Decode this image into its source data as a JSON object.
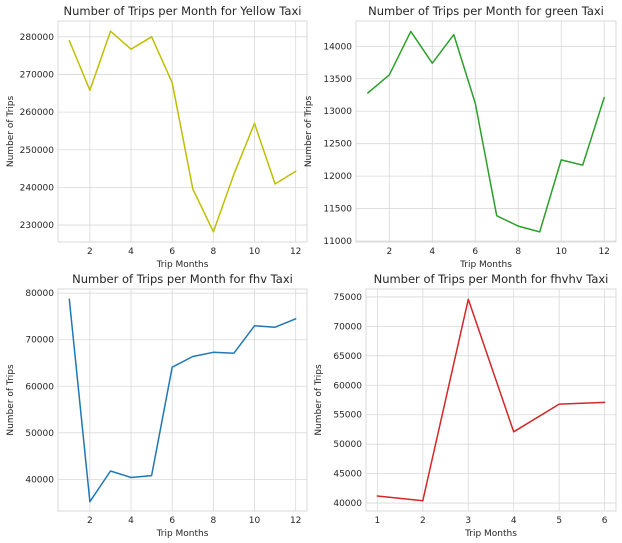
{
  "chart_data": [
    {
      "type": "line",
      "title": "Number of Trips per Month for Yellow Taxi",
      "xlabel": "Trip Months",
      "ylabel": "Number of Trips",
      "x": [
        1,
        2,
        3,
        4,
        5,
        6,
        7,
        8,
        9,
        10,
        11,
        12
      ],
      "series": [
        {
          "values": [
            279000,
            265800,
            281500,
            276700,
            280000,
            267800,
            239600,
            228200,
            243500,
            257000,
            240900,
            244300
          ]
        }
      ],
      "xticks": [
        2,
        4,
        6,
        8,
        10,
        12
      ],
      "yticks": [
        230000,
        240000,
        250000,
        260000,
        270000,
        280000
      ],
      "xlim": [
        0.45,
        12.55
      ],
      "ylim": [
        225500,
        284200
      ],
      "color": "#bfbf00",
      "grid": true
    },
    {
      "type": "line",
      "title": "Number of Trips per Month for green Taxi",
      "xlabel": "Trip Months",
      "ylabel": "Number of Trips",
      "x": [
        1,
        2,
        3,
        4,
        5,
        6,
        7,
        8,
        9,
        10,
        11,
        12
      ],
      "series": [
        {
          "values": [
            13280,
            13560,
            14230,
            13740,
            14180,
            13120,
            11390,
            11230,
            11140,
            12250,
            12170,
            13210
          ]
        }
      ],
      "xticks": [
        2,
        4,
        6,
        8,
        10,
        12
      ],
      "yticks": [
        11000,
        11500,
        12000,
        12500,
        13000,
        13500,
        14000
      ],
      "xlim": [
        0.45,
        12.55
      ],
      "ylim": [
        10985,
        14390
      ],
      "color": "#2ca02c",
      "grid": true
    },
    {
      "type": "line",
      "title": "Number of Trips per Month for fhv Taxi",
      "xlabel": "Trip Months",
      "ylabel": "Number of Trips",
      "x": [
        1,
        2,
        3,
        4,
        5,
        6,
        7,
        8,
        9,
        10,
        11,
        12
      ],
      "series": [
        {
          "values": [
            78700,
            35200,
            41800,
            40400,
            40800,
            64100,
            66400,
            67300,
            67100,
            73000,
            72700,
            74500
          ]
        }
      ],
      "xticks": [
        2,
        4,
        6,
        8,
        10,
        12
      ],
      "yticks": [
        40000,
        50000,
        60000,
        70000,
        80000
      ],
      "xlim": [
        0.45,
        12.55
      ],
      "ylim": [
        33200,
        80900
      ],
      "color": "#1f77b4",
      "grid": true
    },
    {
      "type": "line",
      "title": "Number of Trips per Month for fhvhv Taxi",
      "xlabel": "Trip Months",
      "ylabel": "Number of Trips",
      "x": [
        1,
        2,
        3,
        4,
        5,
        6
      ],
      "series": [
        {
          "values": [
            41200,
            40400,
            74600,
            52100,
            56800,
            57100
          ]
        }
      ],
      "xticks": [
        1,
        2,
        3,
        4,
        5,
        6
      ],
      "yticks": [
        40000,
        45000,
        50000,
        55000,
        60000,
        65000,
        70000,
        75000
      ],
      "xlim": [
        0.75,
        6.25
      ],
      "ylim": [
        38650,
        76350
      ],
      "color": "#d62728",
      "grid": true
    }
  ]
}
